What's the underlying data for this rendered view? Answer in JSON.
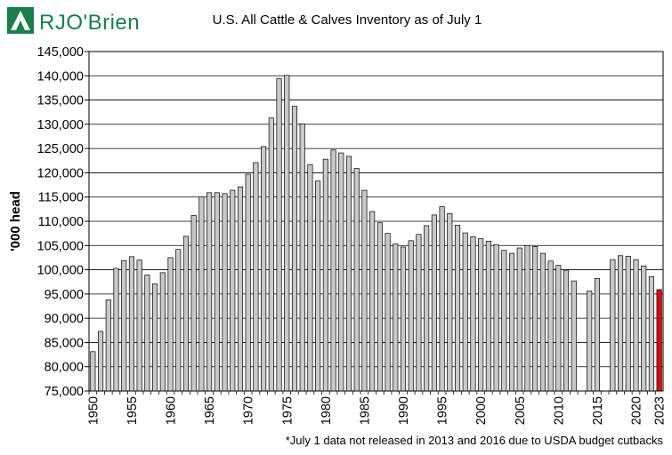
{
  "logo": {
    "text": "RJO'Brien",
    "icon": "rjo-brien-logo-icon"
  },
  "footnote": "*July 1 data not released in 2013 and 2016 due to USDA budget cutbacks",
  "colors": {
    "bar": "#c8c8c8",
    "highlight": "#e3000f",
    "brand": "#1a7f4b"
  },
  "chart_data": {
    "type": "bar",
    "title": "U.S. All Cattle & Calves Inventory as of July 1",
    "xlabel": "",
    "ylabel": "'000 head",
    "ylim": [
      75000,
      145000
    ],
    "yticks": [
      "75,000",
      "80,000",
      "85,000",
      "90,000",
      "95,000",
      "100,000",
      "105,000",
      "110,000",
      "115,000",
      "120,000",
      "125,000",
      "130,000",
      "135,000",
      "140,000",
      "145,000"
    ],
    "xticks": [
      "1950",
      "1955",
      "1960",
      "1965",
      "1970",
      "1975",
      "1980",
      "1985",
      "1990",
      "1995",
      "2000",
      "2005",
      "2010",
      "2015",
      "2020",
      "2023"
    ],
    "grid": true,
    "highlight_year": 2023,
    "categories": [
      1950,
      1951,
      1952,
      1953,
      1954,
      1955,
      1956,
      1957,
      1958,
      1959,
      1960,
      1961,
      1962,
      1963,
      1964,
      1965,
      1966,
      1967,
      1968,
      1969,
      1970,
      1971,
      1972,
      1973,
      1974,
      1975,
      1976,
      1977,
      1978,
      1979,
      1980,
      1981,
      1982,
      1983,
      1984,
      1985,
      1986,
      1987,
      1988,
      1989,
      1990,
      1991,
      1992,
      1993,
      1994,
      1995,
      1996,
      1997,
      1998,
      1999,
      2000,
      2001,
      2002,
      2003,
      2004,
      2005,
      2006,
      2007,
      2008,
      2009,
      2010,
      2011,
      2012,
      2013,
      2014,
      2015,
      2016,
      2017,
      2018,
      2019,
      2020,
      2021,
      2022,
      2023
    ],
    "values": [
      83100,
      87300,
      93800,
      100300,
      101900,
      102700,
      102000,
      98900,
      97100,
      99400,
      102500,
      104200,
      106900,
      111200,
      115000,
      115900,
      115900,
      115700,
      116400,
      117100,
      119700,
      122100,
      125400,
      131300,
      139400,
      140100,
      133700,
      130100,
      121700,
      118300,
      122800,
      124700,
      124100,
      123400,
      120900,
      116400,
      112000,
      109700,
      107500,
      105300,
      104700,
      106000,
      107300,
      109100,
      111300,
      113000,
      111600,
      109200,
      107600,
      106800,
      106400,
      105900,
      105200,
      104000,
      103400,
      104500,
      105000,
      104800,
      103400,
      101800,
      100900,
      99900,
      97700,
      null,
      95600,
      98200,
      null,
      102100,
      102900,
      102800,
      102100,
      100800,
      98600,
      95900
    ]
  }
}
